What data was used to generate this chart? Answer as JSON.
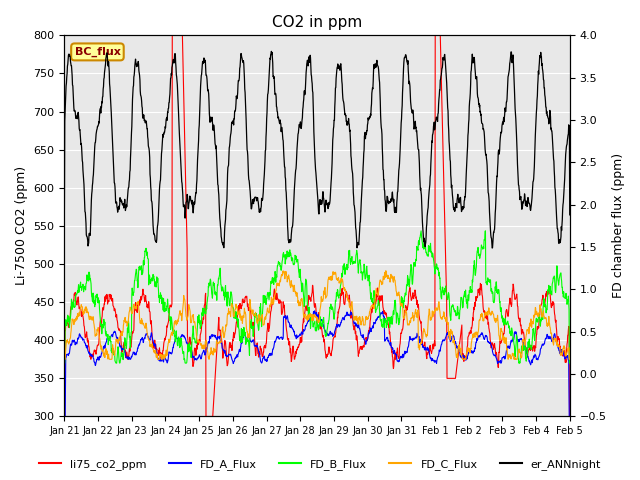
{
  "title": "CO2 in ppm",
  "ylabel_left": "Li-7500 CO2 (ppm)",
  "ylabel_right": "FD chamber flux (ppm)",
  "ylim_left": [
    300,
    800
  ],
  "ylim_right": [
    -0.5,
    4.0
  ],
  "yticks_left": [
    300,
    350,
    400,
    450,
    500,
    550,
    600,
    650,
    700,
    750,
    800
  ],
  "yticks_right": [
    -0.5,
    0.0,
    0.5,
    1.0,
    1.5,
    2.0,
    2.5,
    3.0,
    3.5,
    4.0
  ],
  "xtick_labels": [
    "Jan 21",
    "Jan 22",
    "Jan 23",
    "Jan 24",
    "Jan 25",
    "Jan 26",
    "Jan 27",
    "Jan 28",
    "Jan 29",
    "Jan 30",
    "Jan 31",
    "Feb 1",
    "Feb 2",
    "Feb 3",
    "Feb 4",
    "Feb 5"
  ],
  "background_color": "#e8e8e8",
  "bc_flux_box_color": "#ffff99",
  "bc_flux_box_edgecolor": "#cc8800",
  "legend_labels": [
    "li75_co2_ppm",
    "FD_A_Flux",
    "FD_B_Flux",
    "FD_C_Flux",
    "er_ANNnight"
  ],
  "line_colors": {
    "li75_co2_ppm": "red",
    "FD_A_Flux": "blue",
    "FD_B_Flux": "lime",
    "FD_C_Flux": "orange",
    "er_ANNnight": "black"
  }
}
